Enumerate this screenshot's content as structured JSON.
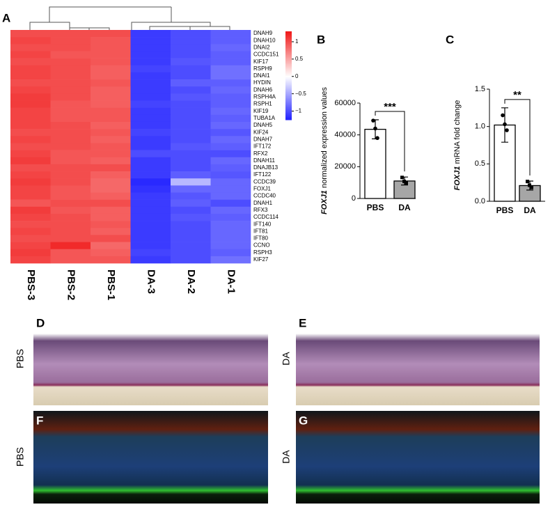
{
  "chart_data": [
    {
      "type": "heatmap",
      "label": "A",
      "rows": [
        "DNAH9",
        "DNAH10",
        "DNAI2",
        "CCDC151",
        "KIF17",
        "RSPH9",
        "DNAI1",
        "HYDIN",
        "DNAH6",
        "RSPH4A",
        "RSPH1",
        "KIF19",
        "TUBA1A",
        "DNAH5",
        "KIF24",
        "DNAH7",
        "IFT172",
        "RFX2",
        "DNAH11",
        "DNAJB13",
        "IFT122",
        "CCDC39",
        "FOXJ1",
        "CCDC40",
        "DNAH1",
        "RFX3",
        "CCDC114",
        "IFT140",
        "IFT81",
        "IFT80",
        "CCNO",
        "RSPH3",
        "KIF27"
      ],
      "columns": [
        "PBS-3",
        "PBS-2",
        "PBS-1",
        "DA-3",
        "DA-2",
        "DA-1"
      ],
      "values": [
        [
          1.0,
          1.0,
          1.0,
          -1.1,
          -1.0,
          -0.9
        ],
        [
          1.05,
          1.0,
          0.95,
          -1.1,
          -1.0,
          -0.9
        ],
        [
          1.0,
          1.0,
          0.95,
          -1.1,
          -1.0,
          -0.85
        ],
        [
          1.05,
          0.95,
          0.95,
          -1.1,
          -1.0,
          -0.9
        ],
        [
          1.0,
          1.0,
          0.95,
          -1.1,
          -0.95,
          -0.9
        ],
        [
          1.05,
          1.0,
          0.9,
          -1.05,
          -1.0,
          -0.8
        ],
        [
          1.05,
          1.0,
          0.9,
          -1.1,
          -1.0,
          -0.8
        ],
        [
          1.0,
          1.0,
          0.95,
          -1.1,
          -0.9,
          -0.9
        ],
        [
          1.05,
          1.0,
          0.9,
          -1.1,
          -1.0,
          -0.85
        ],
        [
          1.1,
          1.0,
          0.9,
          -1.1,
          -0.95,
          -0.9
        ],
        [
          1.1,
          0.95,
          0.9,
          -1.05,
          -1.0,
          -0.9
        ],
        [
          1.05,
          0.95,
          0.95,
          -1.1,
          -1.0,
          -0.85
        ],
        [
          1.05,
          0.95,
          0.95,
          -1.1,
          -1.0,
          -0.9
        ],
        [
          1.05,
          1.0,
          0.9,
          -1.1,
          -1.0,
          -0.85
        ],
        [
          1.0,
          1.0,
          0.95,
          -1.05,
          -1.0,
          -0.95
        ],
        [
          1.05,
          1.0,
          0.9,
          -1.1,
          -1.0,
          -0.85
        ],
        [
          1.0,
          1.0,
          0.95,
          -1.1,
          -0.95,
          -0.9
        ],
        [
          1.05,
          0.95,
          0.95,
          -1.0,
          -1.0,
          -1.0
        ],
        [
          1.1,
          0.95,
          0.9,
          -1.1,
          -1.0,
          -0.85
        ],
        [
          1.0,
          1.0,
          1.0,
          -1.1,
          -1.0,
          -0.9
        ],
        [
          1.05,
          1.0,
          0.9,
          -1.1,
          -0.9,
          -0.95
        ],
        [
          1.1,
          1.0,
          0.85,
          -1.2,
          -0.4,
          -0.85
        ],
        [
          1.05,
          0.95,
          0.85,
          -1.15,
          -0.85,
          -0.85
        ],
        [
          1.05,
          0.95,
          0.9,
          -1.1,
          -0.95,
          -0.85
        ],
        [
          0.95,
          1.0,
          1.0,
          -1.1,
          -0.9,
          -1.0
        ],
        [
          1.1,
          0.95,
          0.9,
          -1.1,
          -1.0,
          -0.85
        ],
        [
          1.05,
          1.0,
          0.9,
          -1.1,
          -0.95,
          -0.9
        ],
        [
          1.0,
          1.0,
          0.95,
          -1.1,
          -1.0,
          -0.85
        ],
        [
          1.05,
          1.0,
          0.9,
          -1.1,
          -1.0,
          -0.85
        ],
        [
          1.0,
          1.0,
          1.0,
          -1.1,
          -1.0,
          -0.85
        ],
        [
          1.05,
          1.2,
          0.85,
          -1.1,
          -1.0,
          -0.85
        ],
        [
          1.1,
          0.95,
          0.9,
          -1.05,
          -1.0,
          -0.9
        ],
        [
          1.05,
          0.95,
          0.95,
          -1.1,
          -1.0,
          -0.8
        ]
      ],
      "zlim": [
        -1.25,
        1.3
      ],
      "zticks": [
        1,
        0.5,
        0,
        {
          "value": -0.5,
          "label": "−0.5"
        },
        {
          "value": -1,
          "label": "−1"
        }
      ],
      "colors": {
        "low": "#2020ff",
        "mid": "#ffffff",
        "high": "#f01818"
      }
    },
    {
      "type": "bar",
      "label": "B",
      "ylabel_gene": "FOXJ1",
      "ylabel": "normalized expression values",
      "categories": [
        "PBS",
        "DA"
      ],
      "values": [
        43500,
        11000
      ],
      "errors": [
        6000,
        2500
      ],
      "points": [
        [
          49000,
          44000,
          38000
        ],
        [
          13000,
          10500,
          9500
        ]
      ],
      "colors": [
        "#ffffff",
        "#a6a6a6"
      ],
      "significance": "***",
      "ylim": [
        0,
        60000
      ],
      "yticks": [
        0,
        20000,
        40000,
        60000
      ]
    },
    {
      "type": "bar",
      "label": "C",
      "ylabel_gene": "FOXJ1",
      "ylabel": "mRNA fold change",
      "categories": [
        "PBS",
        "DA"
      ],
      "values": [
        1.02,
        0.21
      ],
      "errors": [
        0.23,
        0.06
      ],
      "points": [
        [
          1.15,
          1.03,
          0.95
        ],
        [
          0.26,
          0.21,
          0.18
        ]
      ],
      "colors": [
        "#ffffff",
        "#a6a6a6"
      ],
      "significance": "**",
      "ylim": [
        0,
        1.5
      ],
      "yticks": [
        {
          "value": 0,
          "label": "0.0"
        },
        0.5,
        {
          "value": 1,
          "label": "1.0"
        },
        1.5
      ]
    }
  ],
  "images": [
    {
      "letter": "D",
      "label": "PBS"
    },
    {
      "letter": "E",
      "label": "DA"
    },
    {
      "letter": "F",
      "label": "PBS"
    },
    {
      "letter": "G",
      "label": "DA"
    }
  ]
}
